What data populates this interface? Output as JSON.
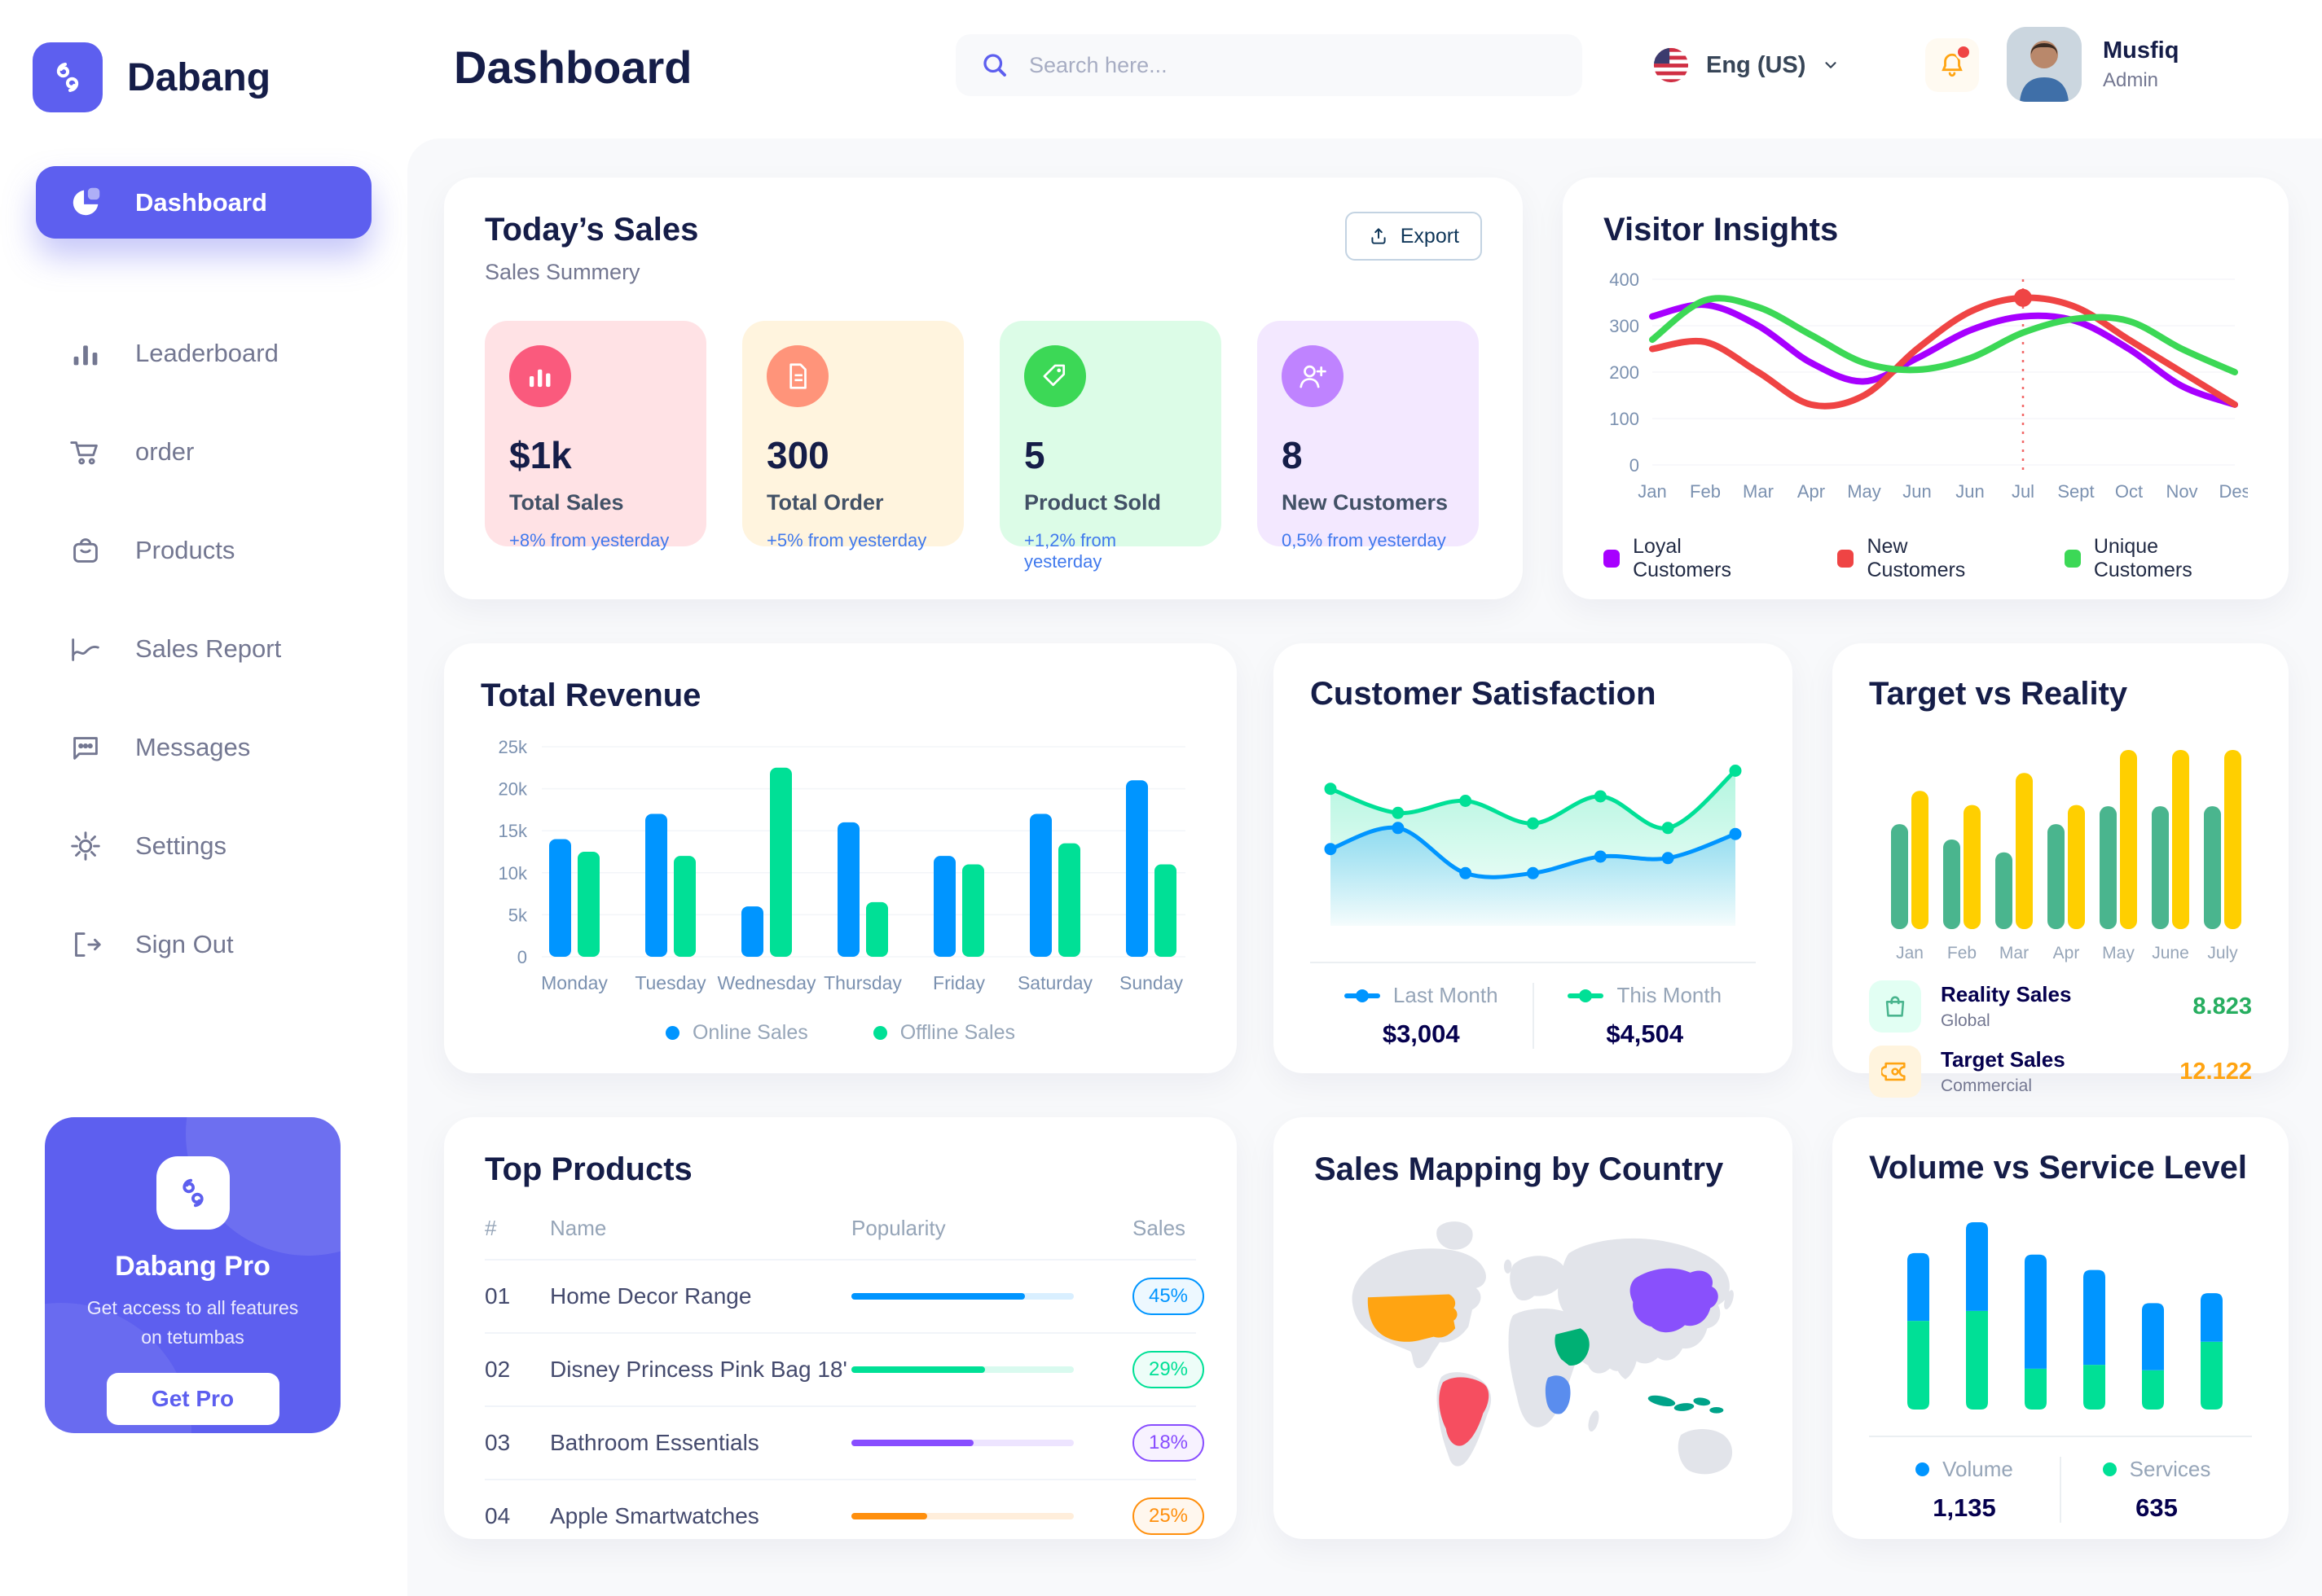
{
  "brand": {
    "name": "Dabang"
  },
  "header": {
    "title": "Dashboard",
    "search": {
      "placeholder": "Search here..."
    },
    "language": {
      "label": "Eng (US)"
    },
    "user": {
      "name": "Musfiq",
      "role": "Admin"
    }
  },
  "sidebar": {
    "items": [
      {
        "label": "Dashboard",
        "icon": "pie-chart-icon",
        "active": true
      },
      {
        "label": "Leaderboard",
        "icon": "bar-chart-icon",
        "active": false
      },
      {
        "label": "order",
        "icon": "cart-icon",
        "active": false
      },
      {
        "label": "Products",
        "icon": "bag-icon",
        "active": false
      },
      {
        "label": "Sales Report",
        "icon": "line-chart-icon",
        "active": false
      },
      {
        "label": "Messages",
        "icon": "message-icon",
        "active": false
      },
      {
        "label": "Settings",
        "icon": "gear-icon",
        "active": false
      },
      {
        "label": "Sign Out",
        "icon": "sign-out-icon",
        "active": false
      }
    ],
    "pro_card": {
      "title": "Dabang Pro",
      "description": "Get access to all features on tetumbas",
      "button": "Get Pro"
    }
  },
  "today_sales": {
    "title": "Today’s Sales",
    "subtitle": "Sales Summery",
    "export_label": "Export",
    "cards": [
      {
        "value": "$1k",
        "label": "Total Sales",
        "delta": "+8% from yesterday",
        "bg": "#FFE2E5",
        "icon_bg": "#FA5A7D",
        "icon": "chart-bars-icon"
      },
      {
        "value": "300",
        "label": "Total Order",
        "delta": "+5% from yesterday",
        "bg": "#FFF4DE",
        "icon_bg": "#FF947A",
        "icon": "receipt-icon"
      },
      {
        "value": "5",
        "label": "Product Sold",
        "delta": "+1,2% from yesterday",
        "bg": "#DCFCE7",
        "icon_bg": "#3CD856",
        "icon": "tag-icon"
      },
      {
        "value": "8",
        "label": "New Customers",
        "delta": "0,5% from yesterday",
        "bg": "#F3E8FF",
        "icon_bg": "#BF83FF",
        "icon": "user-plus-icon"
      }
    ]
  },
  "top_products": {
    "title": "Top Products",
    "columns": [
      "#",
      "Name",
      "Popularity",
      "Sales"
    ],
    "rows": [
      {
        "num": "01",
        "name": "Home Decor Range",
        "progress": 0.78,
        "sales": "45%",
        "color": "#0095FF"
      },
      {
        "num": "02",
        "name": "Disney Princess Pink Bag 18'",
        "progress": 0.6,
        "sales": "29%",
        "color": "#00E096"
      },
      {
        "num": "03",
        "name": "Bathroom Essentials",
        "progress": 0.55,
        "sales": "18%",
        "color": "#884DFF"
      },
      {
        "num": "04",
        "name": "Apple Smartwatches",
        "progress": 0.34,
        "sales": "25%",
        "color": "#FF8F0D"
      }
    ]
  },
  "sales_mapping": {
    "title": "Sales Mapping by Country",
    "highlights": [
      {
        "country": "United States",
        "color": "#FFA412"
      },
      {
        "country": "Brazil",
        "color": "#F64E60"
      },
      {
        "country": "Saudi Arabia",
        "color": "#00B074"
      },
      {
        "country": "DR Congo",
        "color": "#5A8DEE"
      },
      {
        "country": "China",
        "color": "#8950FC"
      },
      {
        "country": "Indonesia",
        "color": "#00A389"
      }
    ]
  },
  "chart_data": [
    {
      "id": "visitor_insights",
      "type": "line",
      "title": "Visitor Insights",
      "x_labels": [
        "Jan",
        "Feb",
        "Mar",
        "Apr",
        "May",
        "Jun",
        "Jun",
        "Jul",
        "Sept",
        "Oct",
        "Nov",
        "Des"
      ],
      "y_ticks": [
        0,
        100,
        200,
        300,
        400
      ],
      "ylim": [
        0,
        400
      ],
      "grid": true,
      "legend_position": "bottom",
      "series": [
        {
          "name": "Loyal Customers",
          "color": "#A700FF",
          "values": [
            320,
            345,
            300,
            220,
            180,
            230,
            290,
            320,
            310,
            250,
            170,
            130
          ]
        },
        {
          "name": "New Customers",
          "color": "#EF4444",
          "values": [
            250,
            265,
            200,
            130,
            150,
            250,
            330,
            360,
            340,
            270,
            200,
            130
          ]
        },
        {
          "name": "Unique Customers",
          "color": "#3CD856",
          "values": [
            270,
            355,
            340,
            280,
            220,
            205,
            230,
            285,
            315,
            310,
            250,
            200
          ]
        }
      ],
      "annotation": {
        "x_label": "Jul",
        "x_index": 7,
        "value": 360,
        "color": "#EF4444",
        "style": "dashed vertical line with dot"
      }
    },
    {
      "id": "total_revenue",
      "type": "bar",
      "title": "Total Revenue",
      "categories": [
        "Monday",
        "Tuesday",
        "Wednesday",
        "Thursday",
        "Friday",
        "Saturday",
        "Sunday"
      ],
      "y_ticks": [
        "0",
        "5k",
        "10k",
        "15k",
        "20k",
        "25k"
      ],
      "ylim": [
        0,
        25000
      ],
      "grid": true,
      "legend_position": "bottom",
      "series": [
        {
          "name": "Online Sales",
          "color": "#0095FF",
          "values": [
            14000,
            17000,
            6000,
            16000,
            12000,
            17000,
            21000
          ]
        },
        {
          "name": "Offline Sales",
          "color": "#00E096",
          "values": [
            12500,
            12000,
            22500,
            6500,
            11000,
            13500,
            11000
          ]
        }
      ]
    },
    {
      "id": "customer_satisfaction",
      "type": "area",
      "title": "Customer Satisfaction",
      "ylim": [
        0,
        100
      ],
      "grid": false,
      "legend_position": "bottom",
      "series": [
        {
          "name": "This Month",
          "color": "#00E096",
          "total": "$4,504",
          "values": [
            78,
            62,
            70,
            55,
            73,
            52,
            90
          ]
        },
        {
          "name": "Last Month",
          "color": "#0095FF",
          "total": "$3,004",
          "values": [
            38,
            52,
            22,
            22,
            33,
            32,
            48
          ]
        }
      ]
    },
    {
      "id": "target_vs_reality",
      "type": "bar",
      "title": "Target vs Reality",
      "categories": [
        "Jan",
        "Feb",
        "Mar",
        "Apr",
        "May",
        "June",
        "July"
      ],
      "ylim": [
        0,
        14
      ],
      "grid": false,
      "legend_position": "bottom-list",
      "series": [
        {
          "name": "Reality Sales",
          "subtitle": "Global",
          "color": "#4AB58E",
          "icon": "shopping-bag-icon",
          "icon_bg": "#E2FFF3",
          "summary_value": "8.823",
          "summary_color": "#27AE60",
          "values": [
            8.2,
            7,
            6,
            8.2,
            9.6,
            9.6,
            9.6
          ]
        },
        {
          "name": "Target Sales",
          "subtitle": "Commercial",
          "color": "#FFCF00",
          "icon": "ticket-icon",
          "icon_bg": "#FFF4DE",
          "summary_value": "12.122",
          "summary_color": "#FFA412",
          "values": [
            10.8,
            9.7,
            12.2,
            9.7,
            14,
            14,
            14
          ]
        }
      ]
    },
    {
      "id": "volume_vs_service",
      "type": "stacked-bar",
      "title": "Volume vs Service Level",
      "grid": false,
      "legend_position": "bottom",
      "series": [
        {
          "name": "Volume",
          "color": "#0095FF",
          "total": "1,135",
          "values": [
            88,
            115,
            148,
            123,
            87,
            63
          ]
        },
        {
          "name": "Services",
          "color": "#00E096",
          "total": "635",
          "values": [
            115,
            128,
            53,
            58,
            51,
            88
          ]
        }
      ]
    }
  ]
}
